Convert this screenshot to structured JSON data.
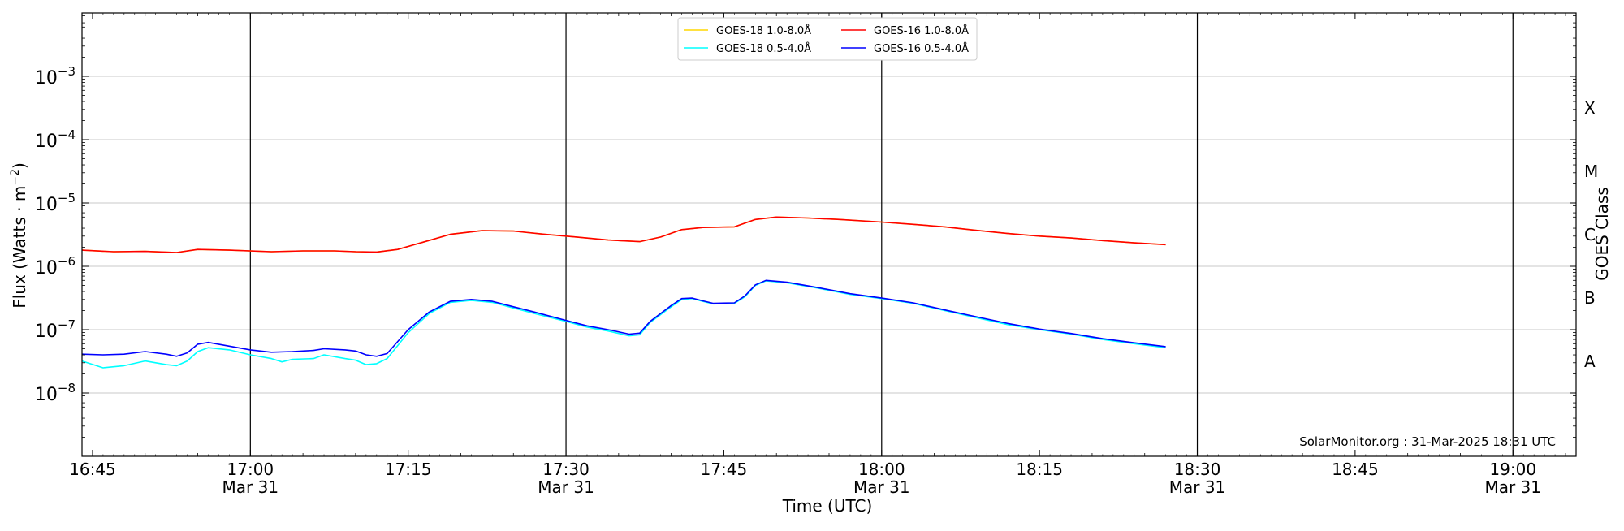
{
  "chart_data": {
    "type": "line",
    "xlabel": "Time (UTC)",
    "ylabel_main": "Flux (Watts · m",
    "ylabel_sup": "−2",
    "ylabel_close": ")",
    "ylabel_right": "GOES Class",
    "y_scale": "log",
    "ylim": [
      1e-09,
      0.01
    ],
    "xlim": [
      "2025-03-31T16:44",
      "2025-03-31T19:06"
    ],
    "grid": "horizontal at decades 1e-8 to 1e-3",
    "vertical_lines": [
      "17:00",
      "17:30",
      "18:00",
      "18:30",
      "19:00"
    ],
    "y_ticks": [
      {
        "value": 1e-08,
        "base": "10",
        "exp": "−8"
      },
      {
        "value": 1e-07,
        "base": "10",
        "exp": "−7"
      },
      {
        "value": 1e-06,
        "base": "10",
        "exp": "−6"
      },
      {
        "value": 1e-05,
        "base": "10",
        "exp": "−5"
      },
      {
        "value": 0.0001,
        "base": "10",
        "exp": "−4"
      },
      {
        "value": 0.001,
        "base": "10",
        "exp": "−3"
      }
    ],
    "x_ticks": [
      {
        "time": "16:45",
        "label": "16:45",
        "date": ""
      },
      {
        "time": "17:00",
        "label": "17:00",
        "date": "Mar 31"
      },
      {
        "time": "17:15",
        "label": "17:15",
        "date": ""
      },
      {
        "time": "17:30",
        "label": "17:30",
        "date": "Mar 31"
      },
      {
        "time": "17:45",
        "label": "17:45",
        "date": ""
      },
      {
        "time": "18:00",
        "label": "18:00",
        "date": "Mar 31"
      },
      {
        "time": "18:15",
        "label": "18:15",
        "date": ""
      },
      {
        "time": "18:30",
        "label": "18:30",
        "date": "Mar 31"
      },
      {
        "time": "18:45",
        "label": "18:45",
        "date": ""
      },
      {
        "time": "19:00",
        "label": "19:00",
        "date": "Mar 31"
      }
    ],
    "class_labels": [
      {
        "label": "A",
        "value": 3.16e-08
      },
      {
        "label": "B",
        "value": 3.16e-07
      },
      {
        "label": "C",
        "value": 3.16e-06
      },
      {
        "label": "M",
        "value": 3.16e-05
      },
      {
        "label": "X",
        "value": 0.000316
      }
    ],
    "legend": {
      "position": "top-center",
      "entries": [
        {
          "label": "GOES-18 1.0-8.0Å",
          "color": "#ffd700"
        },
        {
          "label": "GOES-18 0.5-4.0Å",
          "color": "#00ffff"
        },
        {
          "label": "GOES-16 1.0-8.0Å",
          "color": "#ff0000"
        },
        {
          "label": "GOES-16 0.5-4.0Å",
          "color": "#0000ff"
        }
      ]
    },
    "annotation": "SolarMonitor.org : 31-Mar-2025 18:31 UTC",
    "series": [
      {
        "name": "GOES-18 1.0-8.0Å",
        "color": "#ffd700",
        "points": [
          [
            "16:44",
            1.8e-06
          ],
          [
            "16:47",
            1.7e-06
          ],
          [
            "16:50",
            1.72e-06
          ],
          [
            "16:53",
            1.65e-06
          ],
          [
            "16:55",
            1.85e-06
          ],
          [
            "16:58",
            1.8e-06
          ],
          [
            "17:02",
            1.7e-06
          ],
          [
            "17:05",
            1.75e-06
          ],
          [
            "17:08",
            1.75e-06
          ],
          [
            "17:10",
            1.7e-06
          ],
          [
            "17:12",
            1.68e-06
          ],
          [
            "17:14",
            1.85e-06
          ],
          [
            "17:16",
            2.3e-06
          ],
          [
            "17:19",
            3.2e-06
          ],
          [
            "17:22",
            3.65e-06
          ],
          [
            "17:25",
            3.6e-06
          ],
          [
            "17:28",
            3.2e-06
          ],
          [
            "17:31",
            2.9e-06
          ],
          [
            "17:34",
            2.6e-06
          ],
          [
            "17:37",
            2.45e-06
          ],
          [
            "17:39",
            2.9e-06
          ],
          [
            "17:41",
            3.8e-06
          ],
          [
            "17:43",
            4.1e-06
          ],
          [
            "17:46",
            4.2e-06
          ],
          [
            "17:48",
            5.5e-06
          ],
          [
            "17:50",
            6e-06
          ],
          [
            "17:53",
            5.8e-06
          ],
          [
            "17:56",
            5.5e-06
          ],
          [
            "18:00",
            5e-06
          ],
          [
            "18:03",
            4.6e-06
          ],
          [
            "18:06",
            4.2e-06
          ],
          [
            "18:09",
            3.7e-06
          ],
          [
            "18:12",
            3.3e-06
          ],
          [
            "18:15",
            3e-06
          ],
          [
            "18:18",
            2.8e-06
          ],
          [
            "18:21",
            2.55e-06
          ],
          [
            "18:24",
            2.35e-06
          ],
          [
            "18:27",
            2.2e-06
          ]
        ]
      },
      {
        "name": "GOES-18 0.5-4.0Å",
        "color": "#00ffff",
        "points": [
          [
            "16:44",
            3.2e-08
          ],
          [
            "16:46",
            2.5e-08
          ],
          [
            "16:48",
            2.7e-08
          ],
          [
            "16:50",
            3.2e-08
          ],
          [
            "16:52",
            2.8e-08
          ],
          [
            "16:53",
            2.7e-08
          ],
          [
            "16:54",
            3.2e-08
          ],
          [
            "16:55",
            4.5e-08
          ],
          [
            "16:56",
            5.2e-08
          ],
          [
            "16:58",
            4.8e-08
          ],
          [
            "17:00",
            4e-08
          ],
          [
            "17:02",
            3.5e-08
          ],
          [
            "17:03",
            3.1e-08
          ],
          [
            "17:04",
            3.4e-08
          ],
          [
            "17:06",
            3.5e-08
          ],
          [
            "17:07",
            4e-08
          ],
          [
            "17:09",
            3.5e-08
          ],
          [
            "17:10",
            3.3e-08
          ],
          [
            "17:11",
            2.8e-08
          ],
          [
            "17:12",
            2.9e-08
          ],
          [
            "17:13",
            3.5e-08
          ],
          [
            "17:15",
            9e-08
          ],
          [
            "17:17",
            1.8e-07
          ],
          [
            "17:19",
            2.7e-07
          ],
          [
            "17:21",
            2.9e-07
          ],
          [
            "17:23",
            2.7e-07
          ],
          [
            "17:25",
            2.2e-07
          ],
          [
            "17:27",
            1.8e-07
          ],
          [
            "17:30",
            1.35e-07
          ],
          [
            "17:32",
            1.1e-07
          ],
          [
            "17:34",
            9.5e-08
          ],
          [
            "17:36",
            8e-08
          ],
          [
            "17:37",
            8.3e-08
          ],
          [
            "17:38",
            1.3e-07
          ],
          [
            "17:40",
            2.3e-07
          ],
          [
            "17:41",
            3e-07
          ],
          [
            "17:42",
            3.1e-07
          ],
          [
            "17:43",
            2.8e-07
          ],
          [
            "17:44",
            2.55e-07
          ],
          [
            "17:46",
            2.6e-07
          ],
          [
            "17:47",
            3.3e-07
          ],
          [
            "17:48",
            5e-07
          ],
          [
            "17:49",
            5.9e-07
          ],
          [
            "17:51",
            5.5e-07
          ],
          [
            "17:54",
            4.5e-07
          ],
          [
            "17:57",
            3.6e-07
          ],
          [
            "18:00",
            3.1e-07
          ],
          [
            "18:03",
            2.6e-07
          ],
          [
            "18:06",
            2e-07
          ],
          [
            "18:09",
            1.55e-07
          ],
          [
            "18:12",
            1.2e-07
          ],
          [
            "18:15",
            1e-07
          ],
          [
            "18:18",
            8.5e-08
          ],
          [
            "18:21",
            7e-08
          ],
          [
            "18:24",
            6e-08
          ],
          [
            "18:27",
            5.2e-08
          ]
        ]
      },
      {
        "name": "GOES-16 1.0-8.0Å",
        "color": "#ff0000",
        "points": [
          [
            "16:44",
            1.8e-06
          ],
          [
            "16:47",
            1.7e-06
          ],
          [
            "16:50",
            1.72e-06
          ],
          [
            "16:53",
            1.65e-06
          ],
          [
            "16:55",
            1.85e-06
          ],
          [
            "16:58",
            1.8e-06
          ],
          [
            "17:02",
            1.7e-06
          ],
          [
            "17:05",
            1.75e-06
          ],
          [
            "17:08",
            1.75e-06
          ],
          [
            "17:10",
            1.7e-06
          ],
          [
            "17:12",
            1.68e-06
          ],
          [
            "17:14",
            1.85e-06
          ],
          [
            "17:16",
            2.3e-06
          ],
          [
            "17:19",
            3.2e-06
          ],
          [
            "17:22",
            3.65e-06
          ],
          [
            "17:25",
            3.6e-06
          ],
          [
            "17:28",
            3.2e-06
          ],
          [
            "17:31",
            2.9e-06
          ],
          [
            "17:34",
            2.6e-06
          ],
          [
            "17:37",
            2.45e-06
          ],
          [
            "17:39",
            2.9e-06
          ],
          [
            "17:41",
            3.8e-06
          ],
          [
            "17:43",
            4.1e-06
          ],
          [
            "17:46",
            4.2e-06
          ],
          [
            "17:48",
            5.5e-06
          ],
          [
            "17:50",
            6e-06
          ],
          [
            "17:53",
            5.8e-06
          ],
          [
            "17:56",
            5.5e-06
          ],
          [
            "18:00",
            5e-06
          ],
          [
            "18:03",
            4.6e-06
          ],
          [
            "18:06",
            4.2e-06
          ],
          [
            "18:09",
            3.7e-06
          ],
          [
            "18:12",
            3.3e-06
          ],
          [
            "18:15",
            3e-06
          ],
          [
            "18:18",
            2.8e-06
          ],
          [
            "18:21",
            2.55e-06
          ],
          [
            "18:24",
            2.35e-06
          ],
          [
            "18:27",
            2.2e-06
          ]
        ]
      },
      {
        "name": "GOES-16 0.5-4.0Å",
        "color": "#0000ff",
        "points": [
          [
            "16:44",
            4.1e-08
          ],
          [
            "16:46",
            4e-08
          ],
          [
            "16:48",
            4.1e-08
          ],
          [
            "16:50",
            4.5e-08
          ],
          [
            "16:52",
            4.1e-08
          ],
          [
            "16:53",
            3.8e-08
          ],
          [
            "16:54",
            4.3e-08
          ],
          [
            "16:55",
            5.9e-08
          ],
          [
            "16:56",
            6.3e-08
          ],
          [
            "16:58",
            5.5e-08
          ],
          [
            "17:00",
            4.8e-08
          ],
          [
            "17:02",
            4.4e-08
          ],
          [
            "17:04",
            4.5e-08
          ],
          [
            "17:06",
            4.7e-08
          ],
          [
            "17:07",
            5e-08
          ],
          [
            "17:09",
            4.8e-08
          ],
          [
            "17:10",
            4.6e-08
          ],
          [
            "17:11",
            4e-08
          ],
          [
            "17:12",
            3.8e-08
          ],
          [
            "17:13",
            4.2e-08
          ],
          [
            "17:15",
            1e-07
          ],
          [
            "17:17",
            1.9e-07
          ],
          [
            "17:19",
            2.8e-07
          ],
          [
            "17:21",
            3e-07
          ],
          [
            "17:23",
            2.8e-07
          ],
          [
            "17:25",
            2.3e-07
          ],
          [
            "17:27",
            1.9e-07
          ],
          [
            "17:30",
            1.4e-07
          ],
          [
            "17:32",
            1.15e-07
          ],
          [
            "17:34",
            1e-07
          ],
          [
            "17:36",
            8.5e-08
          ],
          [
            "17:37",
            8.8e-08
          ],
          [
            "17:38",
            1.35e-07
          ],
          [
            "17:40",
            2.4e-07
          ],
          [
            "17:41",
            3.1e-07
          ],
          [
            "17:42",
            3.15e-07
          ],
          [
            "17:43",
            2.85e-07
          ],
          [
            "17:44",
            2.6e-07
          ],
          [
            "17:46",
            2.65e-07
          ],
          [
            "17:47",
            3.4e-07
          ],
          [
            "17:48",
            5.1e-07
          ],
          [
            "17:49",
            6e-07
          ],
          [
            "17:51",
            5.6e-07
          ],
          [
            "17:54",
            4.6e-07
          ],
          [
            "17:57",
            3.7e-07
          ],
          [
            "18:00",
            3.15e-07
          ],
          [
            "18:03",
            2.65e-07
          ],
          [
            "18:06",
            2.05e-07
          ],
          [
            "18:09",
            1.6e-07
          ],
          [
            "18:12",
            1.25e-07
          ],
          [
            "18:15",
            1.02e-07
          ],
          [
            "18:18",
            8.7e-08
          ],
          [
            "18:21",
            7.2e-08
          ],
          [
            "18:24",
            6.2e-08
          ],
          [
            "18:27",
            5.4e-08
          ]
        ]
      }
    ]
  }
}
